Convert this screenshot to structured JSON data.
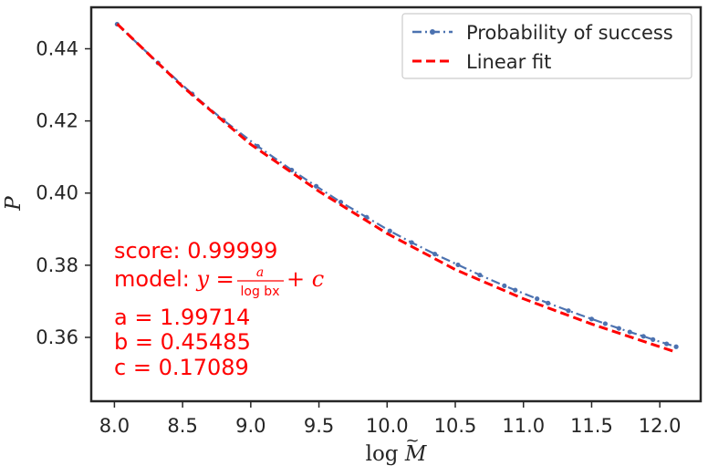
{
  "chart_data": {
    "type": "line",
    "xlabel": "log M̃",
    "ylabel": "P",
    "xlim": [
      7.83,
      12.3
    ],
    "ylim": [
      0.3423,
      0.4515
    ],
    "xticks": [
      "8.0",
      "8.5",
      "9.0",
      "9.5",
      "10.0",
      "10.5",
      "11.0",
      "11.5",
      "12.0"
    ],
    "xtick_values": [
      8.0,
      8.5,
      9.0,
      9.5,
      10.0,
      10.5,
      11.0,
      11.5,
      12.0
    ],
    "yticks": [
      "0.36",
      "0.38",
      "0.40",
      "0.42",
      "0.44"
    ],
    "ytick_values": [
      0.36,
      0.38,
      0.4,
      0.42,
      0.44
    ],
    "grid": false,
    "legend_position": "top-right",
    "legend": [
      "Probability of success",
      "Linear fit"
    ],
    "colors": {
      "data": "#4c72b0",
      "fit": "#ff0000",
      "axes": "#262626"
    },
    "series": [
      {
        "name": "Probability of success",
        "style": "dashdot-marker",
        "x": [
          8.02,
          8.32,
          8.57,
          8.8,
          9.05,
          9.3,
          9.48,
          9.66,
          9.85,
          10.02,
          10.18,
          10.35,
          10.52,
          10.68,
          10.86,
          10.94,
          11.1,
          11.18,
          11.33,
          11.5,
          11.6,
          11.7,
          11.78,
          11.88,
          11.95,
          12.05,
          12.12
        ],
        "y": [
          0.4468,
          0.4361,
          0.4275,
          0.4202,
          0.413,
          0.4064,
          0.4019,
          0.3975,
          0.3933,
          0.3895,
          0.3863,
          0.3831,
          0.3801,
          0.3773,
          0.3743,
          0.3731,
          0.3707,
          0.3695,
          0.3674,
          0.3651,
          0.3638,
          0.3625,
          0.3615,
          0.3603,
          0.3594,
          0.3582,
          0.3574
        ]
      },
      {
        "name": "Linear fit",
        "style": "dashed",
        "x": [
          8.02,
          8.5,
          9.0,
          9.5,
          10.0,
          10.5,
          11.0,
          11.5,
          12.0,
          12.12
        ],
        "y": [
          0.4469,
          0.4295,
          0.4135,
          0.4005,
          0.3888,
          0.3788,
          0.3707,
          0.3637,
          0.3574,
          0.3559
        ]
      }
    ],
    "annotation": {
      "score": "score: 0.99999",
      "model_prefix": "model: ",
      "model_y": "y",
      "model_eq": " = ",
      "model_num": "a",
      "model_den": "log bx",
      "model_tail": " + c",
      "a": "a = 1.99714",
      "b": "b = 0.45485",
      "c": "c = 0.17089"
    }
  }
}
